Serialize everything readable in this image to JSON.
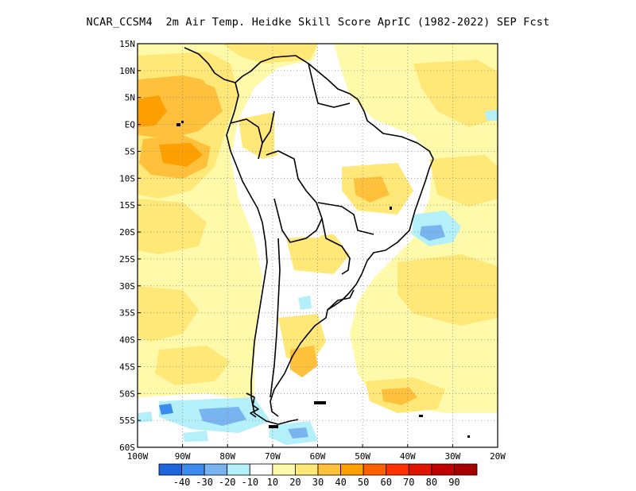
{
  "title": "NCAR_CCSM4  2m Air Temp. Heidke Skill Score AprIC (1982-2022) SEP Fcst",
  "map": {
    "lon_range": [
      -100,
      -20
    ],
    "lat_range": [
      -60,
      15
    ],
    "gridlines": "dotted",
    "lon_ticks": [
      "100W",
      "90W",
      "80W",
      "70W",
      "60W",
      "50W",
      "40W",
      "30W",
      "20W"
    ],
    "lat_ticks": [
      "15N",
      "10N",
      "5N",
      "EQ",
      "5S",
      "10S",
      "15S",
      "20S",
      "25S",
      "30S",
      "35S",
      "40S",
      "45S",
      "50S",
      "55S",
      "60S"
    ]
  },
  "colorbar": {
    "labels": [
      "-40",
      "-30",
      "-20",
      "-10",
      "10",
      "20",
      "30",
      "40",
      "50",
      "60",
      "70",
      "80",
      "90"
    ],
    "colors": [
      "#1e64dc",
      "#3c8cf0",
      "#78b4f0",
      "#b4f0fa",
      "#ffffff",
      "#fffaaa",
      "#ffe878",
      "#ffc03c",
      "#ffa000",
      "#ff6000",
      "#ff3200",
      "#e11400",
      "#c00000",
      "#a50000"
    ]
  },
  "shading_colors": {
    "level10": "#fffaaa",
    "level20": "#ffe878",
    "level30": "#ffc03c",
    "level40": "#ffa000",
    "level50": "#ff6000",
    "neg10": "#b4f0fa",
    "neg20": "#78b4f0",
    "neg30": "#3c8cf0"
  }
}
